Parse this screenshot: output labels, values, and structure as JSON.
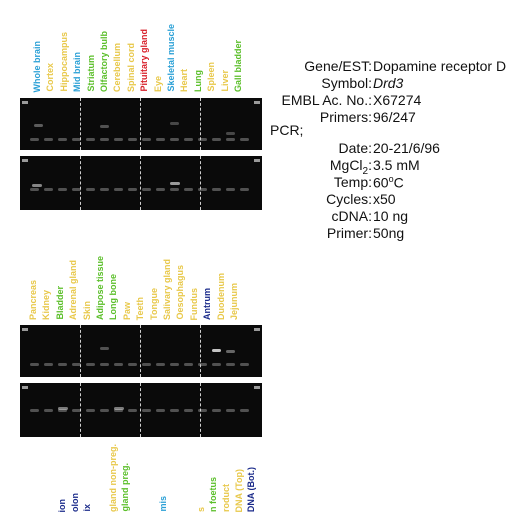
{
  "colors": {
    "blue": "#2aa0d6",
    "yellow": "#e8c84a",
    "green": "#5bbf2a",
    "red": "#d8202a",
    "navy": "#1a2a8a"
  },
  "panel_top": {
    "lanes": [
      {
        "label": "Whole brain",
        "color": "blue"
      },
      {
        "label": "Cortex",
        "color": "yellow"
      },
      {
        "label": "Hippocampus",
        "color": "yellow"
      },
      {
        "label": "Mid brain",
        "color": "blue"
      },
      {
        "label": "Striatum",
        "color": "green"
      },
      {
        "label": "Olfactory bulb",
        "color": "green"
      },
      {
        "label": "Cerebellum",
        "color": "yellow"
      },
      {
        "label": "Spinal cord",
        "color": "yellow"
      },
      {
        "label": "Pituitary gland",
        "color": "red"
      },
      {
        "label": "Eye",
        "color": "yellow"
      },
      {
        "label": "Skeletal muscle",
        "color": "blue"
      },
      {
        "label": "Heart",
        "color": "yellow"
      },
      {
        "label": "Lung",
        "color": "green"
      },
      {
        "label": "Spleen",
        "color": "yellow"
      },
      {
        "label": "Liver",
        "color": "yellow"
      },
      {
        "label": "Gall bladder",
        "color": "green"
      }
    ]
  },
  "panel_middle": {
    "lanes": [
      {
        "label": "Pancreas",
        "color": "yellow"
      },
      {
        "label": "Kidney",
        "color": "yellow"
      },
      {
        "label": "Bladder",
        "color": "green"
      },
      {
        "label": "Adrenal gland",
        "color": "yellow"
      },
      {
        "label": "Skin",
        "color": "yellow"
      },
      {
        "label": "Adipose tissue",
        "color": "green"
      },
      {
        "label": "Long bone",
        "color": "green"
      },
      {
        "label": "Paw",
        "color": "yellow"
      },
      {
        "label": "Teeth",
        "color": "yellow"
      },
      {
        "label": "Tongue",
        "color": "yellow"
      },
      {
        "label": "Salivary gland",
        "color": "yellow"
      },
      {
        "label": "Oesophagus",
        "color": "yellow"
      },
      {
        "label": "Fundus",
        "color": "yellow"
      },
      {
        "label": "Antrum",
        "color": "navy"
      },
      {
        "label": "Duodenum",
        "color": "yellow"
      },
      {
        "label": "Jejunum",
        "color": "yellow"
      }
    ]
  },
  "panel_bottom": {
    "lanes": [
      {
        "label": "",
        "color": "blue"
      },
      {
        "label": "",
        "color": "yellow"
      },
      {
        "label": "ion",
        "color": "navy"
      },
      {
        "label": "olon",
        "color": "navy"
      },
      {
        "label": "ix",
        "color": "navy"
      },
      {
        "label": "",
        "color": "yellow"
      },
      {
        "label": "gland non-preg.",
        "color": "yellow"
      },
      {
        "label": "gland preg.",
        "color": "green"
      },
      {
        "label": "",
        "color": "yellow"
      },
      {
        "label": "",
        "color": "yellow"
      },
      {
        "label": "mis",
        "color": "blue"
      },
      {
        "label": "",
        "color": "yellow"
      },
      {
        "label": "",
        "color": "yellow"
      },
      {
        "label": "s",
        "color": "yellow"
      },
      {
        "label": "n foetus",
        "color": "green"
      },
      {
        "label": "roduct",
        "color": "yellow"
      },
      {
        "label": "DNA (Top)",
        "color": "yellow"
      },
      {
        "label": "DNA (Bot.)",
        "color": "navy"
      }
    ]
  },
  "gene_info": {
    "rows": [
      {
        "key": "Gene/EST:",
        "value": "Dopamine receptor D"
      },
      {
        "key": "Symbol:",
        "value": "Drd3"
      },
      {
        "key": "EMBL Ac. No.:",
        "value": "X67274"
      },
      {
        "key": "Primers:",
        "value": "96/247"
      }
    ]
  },
  "pcr": {
    "heading": "PCR;",
    "rows": [
      {
        "key": "Date:",
        "value": "20-21/6/96"
      },
      {
        "key": "MgCl2:",
        "value": "3.5 mM"
      },
      {
        "key": "Temp:",
        "value": "60oC"
      },
      {
        "key": "Cycles:",
        "value": "x50"
      },
      {
        "key": "cDNA:",
        "value": "10 ng"
      },
      {
        "key": "Primer:",
        "value": "50ng"
      }
    ]
  }
}
